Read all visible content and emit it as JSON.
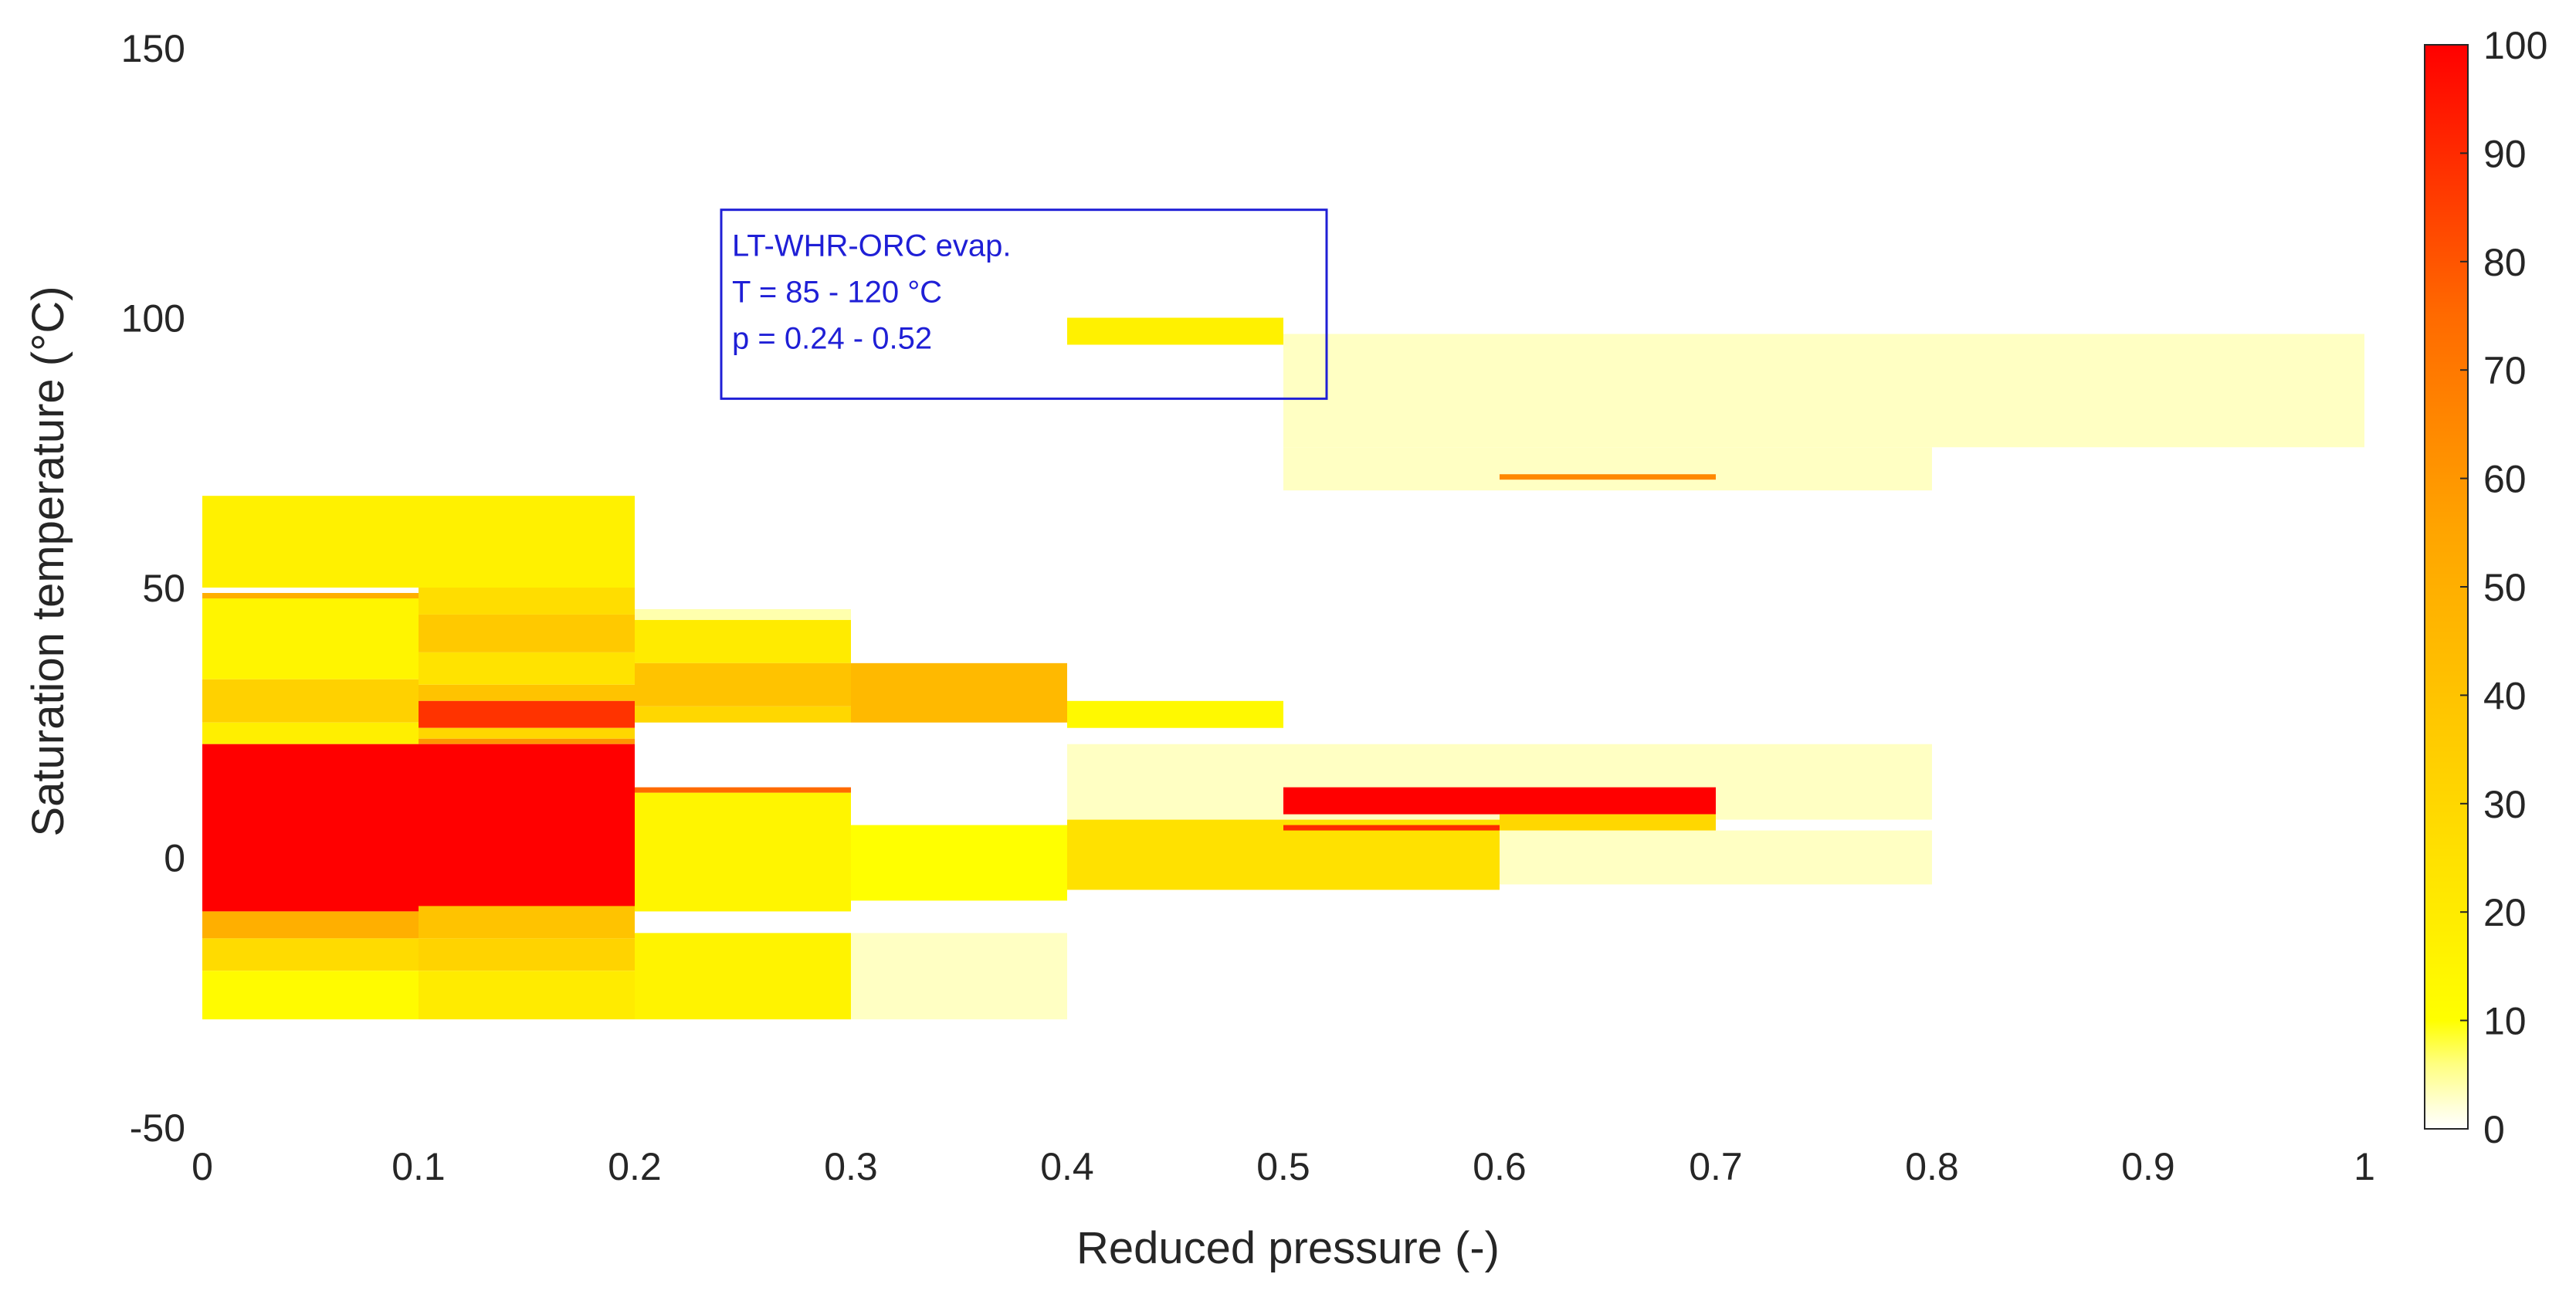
{
  "chart_data": {
    "type": "heatmap",
    "title": "",
    "xlabel": "Reduced pressure (-)",
    "ylabel": "Saturation temperature (°C)",
    "xlim": [
      0,
      1
    ],
    "ylim": [
      -50,
      150
    ],
    "xticks": [
      "0",
      "0.1",
      "0.2",
      "0.3",
      "0.4",
      "0.5",
      "0.6",
      "0.7",
      "0.8",
      "0.9",
      "1"
    ],
    "yticks": [
      "-50",
      "0",
      "50",
      "100",
      "150"
    ],
    "colorbar": {
      "min": 0,
      "max": 100,
      "ticks": [
        "0",
        "10",
        "20",
        "30",
        "40",
        "50",
        "60",
        "70",
        "80",
        "90",
        "100"
      ]
    },
    "cells": [
      {
        "x0": 0.5,
        "x1": 1.0,
        "y0": 76,
        "y1": 97,
        "value": 3
      },
      {
        "x0": 0.5,
        "x1": 0.8,
        "y0": 68,
        "y1": 76,
        "value": 3
      },
      {
        "x0": 0.6,
        "x1": 0.7,
        "y0": 70,
        "y1": 71,
        "value": 65
      },
      {
        "x0": 0.4,
        "x1": 0.5,
        "y0": 95,
        "y1": 100,
        "value": 17
      },
      {
        "x0": 0.0,
        "x1": 0.2,
        "y0": 50,
        "y1": 67,
        "value": 17
      },
      {
        "x0": 0.0,
        "x1": 0.1,
        "y0": 33,
        "y1": 49,
        "value": 15
      },
      {
        "x0": 0.0,
        "x1": 0.1,
        "y0": 48,
        "y1": 49,
        "value": 50
      },
      {
        "x0": 0.0,
        "x1": 0.1,
        "y0": 25,
        "y1": 33,
        "value": 33
      },
      {
        "x0": 0.0,
        "x1": 0.1,
        "y0": 21,
        "y1": 25,
        "value": 18
      },
      {
        "x0": 0.1,
        "x1": 0.2,
        "y0": 38,
        "y1": 45,
        "value": 37
      },
      {
        "x0": 0.1,
        "x1": 0.2,
        "y0": 45,
        "y1": 50,
        "value": 27
      },
      {
        "x0": 0.1,
        "x1": 0.2,
        "y0": 32,
        "y1": 38,
        "value": 24
      },
      {
        "x0": 0.1,
        "x1": 0.2,
        "y0": 29,
        "y1": 32,
        "value": 40
      },
      {
        "x0": 0.1,
        "x1": 0.2,
        "y0": 24,
        "y1": 29,
        "value": 88
      },
      {
        "x0": 0.1,
        "x1": 0.2,
        "y0": 22,
        "y1": 24,
        "value": 30
      },
      {
        "x0": 0.1,
        "x1": 0.2,
        "y0": 21,
        "y1": 22,
        "value": 60
      },
      {
        "x0": 0.2,
        "x1": 0.3,
        "y0": 44,
        "y1": 46,
        "value": 4
      },
      {
        "x0": 0.2,
        "x1": 0.3,
        "y0": 36,
        "y1": 44,
        "value": 20
      },
      {
        "x0": 0.2,
        "x1": 0.3,
        "y0": 28,
        "y1": 36,
        "value": 40
      },
      {
        "x0": 0.2,
        "x1": 0.3,
        "y0": 25,
        "y1": 28,
        "value": 30
      },
      {
        "x0": 0.3,
        "x1": 0.4,
        "y0": 25,
        "y1": 36,
        "value": 45
      },
      {
        "x0": 0.4,
        "x1": 0.5,
        "y0": 24,
        "y1": 29,
        "value": 13
      },
      {
        "x0": 0.0,
        "x1": 0.2,
        "y0": -10,
        "y1": 21,
        "value": 100
      },
      {
        "x0": 0.2,
        "x1": 0.3,
        "y0": -10,
        "y1": 12,
        "value": 15
      },
      {
        "x0": 0.2,
        "x1": 0.3,
        "y0": 12,
        "y1": 13,
        "value": 75
      },
      {
        "x0": 0.3,
        "x1": 0.4,
        "y0": -8,
        "y1": 6,
        "value": 10
      },
      {
        "x0": 0.4,
        "x1": 0.8,
        "y0": 7,
        "y1": 21,
        "value": 3
      },
      {
        "x0": 0.4,
        "x1": 0.6,
        "y0": -6,
        "y1": 7,
        "value": 25
      },
      {
        "x0": 0.6,
        "x1": 0.8,
        "y0": -5,
        "y1": 5,
        "value": 3
      },
      {
        "x0": 0.5,
        "x1": 0.7,
        "y0": 8,
        "y1": 13,
        "value": 100
      },
      {
        "x0": 0.5,
        "x1": 0.6,
        "y0": 5,
        "y1": 6,
        "value": 90
      },
      {
        "x0": 0.6,
        "x1": 0.7,
        "y0": 5,
        "y1": 8,
        "value": 30
      },
      {
        "x0": 0.0,
        "x1": 0.1,
        "y0": -15,
        "y1": -10,
        "value": 50
      },
      {
        "x0": 0.1,
        "x1": 0.2,
        "y0": -15,
        "y1": -9,
        "value": 40
      },
      {
        "x0": 0.0,
        "x1": 0.1,
        "y0": -21,
        "y1": -15,
        "value": 28
      },
      {
        "x0": 0.1,
        "x1": 0.2,
        "y0": -21,
        "y1": -15,
        "value": 32
      },
      {
        "x0": 0.0,
        "x1": 0.1,
        "y0": -30,
        "y1": -21,
        "value": 12
      },
      {
        "x0": 0.1,
        "x1": 0.2,
        "y0": -30,
        "y1": -21,
        "value": 20
      },
      {
        "x0": 0.2,
        "x1": 0.3,
        "y0": -30,
        "y1": -14,
        "value": 16
      },
      {
        "x0": 0.3,
        "x1": 0.4,
        "y0": -30,
        "y1": -14,
        "value": 3
      }
    ],
    "annotation": {
      "lines": [
        "LT-WHR-ORC evap.",
        "T = 85 - 120 °C",
        "p = 0.24 - 0.52"
      ],
      "x_range": [
        0.24,
        0.52
      ],
      "y_range": [
        85,
        120
      ],
      "color": "#1f1fd6"
    }
  }
}
